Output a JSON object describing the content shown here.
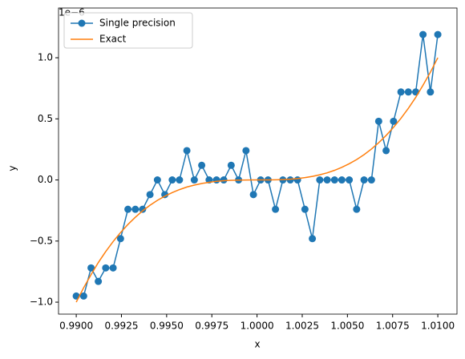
{
  "chart_data": {
    "type": "line",
    "x_label": "x",
    "y_label": "y",
    "y_offset_label": "1e−6",
    "x": [
      0.99,
      0.99041,
      0.99082,
      0.99122,
      0.99163,
      0.99204,
      0.99245,
      0.99286,
      0.99327,
      0.99367,
      0.99408,
      0.99449,
      0.9949,
      0.99531,
      0.99571,
      0.99612,
      0.99653,
      0.99694,
      0.99735,
      0.99776,
      0.99816,
      0.99857,
      0.99898,
      0.99939,
      0.9998,
      1.0002,
      1.00061,
      1.00102,
      1.00143,
      1.00184,
      1.00224,
      1.00265,
      1.00306,
      1.00347,
      1.00388,
      1.00429,
      1.00469,
      1.0051,
      1.00551,
      1.00592,
      1.00633,
      1.00673,
      1.00714,
      1.00755,
      1.00796,
      1.00837,
      1.00878,
      1.00918,
      1.00959,
      1.01
    ],
    "series": [
      {
        "name": "Single precision",
        "color": "#1f77b4",
        "marker": true,
        "values": [
          -0.95,
          -0.95,
          -0.72,
          -0.83,
          -0.72,
          -0.72,
          -0.48,
          -0.24,
          -0.24,
          -0.24,
          -0.12,
          0,
          -0.12,
          0,
          0,
          0.24,
          0,
          0.12,
          0,
          0,
          0,
          0.12,
          0,
          0.24,
          -0.12,
          0,
          0,
          -0.24,
          0,
          0,
          0,
          -0.24,
          -0.48,
          0,
          0,
          0,
          0,
          0,
          -0.24,
          0,
          0,
          0.48,
          0.24,
          0.48,
          0.72,
          0.72,
          0.72,
          1.19,
          0.72,
          1.19
        ]
      },
      {
        "name": "Exact",
        "color": "#ff7f0e",
        "marker": false,
        "values": [
          -1.0,
          -0.882,
          -0.775,
          -0.676,
          -0.586,
          -0.504,
          -0.431,
          -0.364,
          -0.305,
          -0.253,
          -0.207,
          -0.167,
          -0.133,
          -0.103,
          -0.079,
          -0.058,
          -0.042,
          -0.029,
          -0.019,
          -0.011,
          -0.006,
          -0.003,
          -0.001,
          -0.0002,
          0,
          0,
          0.0002,
          0.001,
          0.003,
          0.006,
          0.011,
          0.019,
          0.029,
          0.042,
          0.058,
          0.079,
          0.103,
          0.133,
          0.167,
          0.207,
          0.253,
          0.305,
          0.364,
          0.431,
          0.504,
          0.586,
          0.676,
          0.775,
          0.882,
          1.0
        ]
      }
    ],
    "xlim": [
      0.98902,
      1.01106
    ],
    "ylim": [
      -1.098,
      1.407
    ],
    "xticks": [
      {
        "value": 0.99,
        "label": "0.9900"
      },
      {
        "value": 0.9925,
        "label": "0.9925"
      },
      {
        "value": 0.995,
        "label": "0.9950"
      },
      {
        "value": 0.9975,
        "label": "0.9975"
      },
      {
        "value": 1.0,
        "label": "1.0000"
      },
      {
        "value": 1.0025,
        "label": "1.0025"
      },
      {
        "value": 1.005,
        "label": "1.0050"
      },
      {
        "value": 1.0075,
        "label": "1.0075"
      },
      {
        "value": 1.01,
        "label": "1.0100"
      }
    ],
    "yticks": [
      {
        "value": -1.0,
        "label": "−1.0"
      },
      {
        "value": -0.5,
        "label": "−0.5"
      },
      {
        "value": 0.0,
        "label": "0.0"
      },
      {
        "value": 0.5,
        "label": "0.5"
      },
      {
        "value": 1.0,
        "label": "1.0"
      }
    ],
    "grid": false,
    "legend": "upper left"
  }
}
